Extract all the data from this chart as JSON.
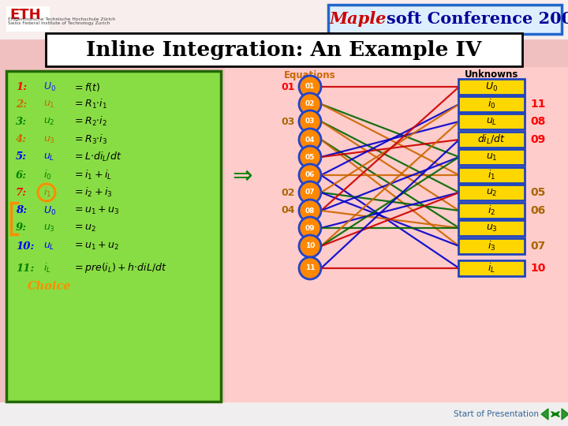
{
  "bg_color": "#F0C0C0",
  "top_strip_color": "#F5E8E8",
  "center_area_color": "#FFCCCC",
  "green_box_color": "#88DD44",
  "green_box_edge": "#226600",
  "title": "Inline Integration: An Example IV",
  "title_box_fc": "white",
  "title_box_ec": "black",
  "maple_box_fc": "#DDEEFF",
  "maple_box_ec": "#2266CC",
  "maple_red": "#CC0000",
  "maple_blue": "#000099",
  "node_fc": "#FF8800",
  "node_ec": "#2244CC",
  "unk_box_fc": "#FFD700",
  "unk_box_ec": "#2244BB",
  "eq_labels_left": [
    "01",
    "03",
    "02",
    "04"
  ],
  "eq_label_left_colors": [
    "red",
    "gold",
    "gold",
    "gold"
  ],
  "eq_node_labels": [
    "01",
    "02",
    "03",
    "04",
    "05",
    "06",
    "07",
    "08",
    "09",
    "10",
    "11"
  ],
  "unk_labels_math": [
    "U_0",
    "i_0",
    "u_L",
    "di_L/dt",
    "u_1",
    "i_1",
    "u_2",
    "i_2",
    "u_3",
    "i_3",
    "i_L"
  ],
  "unk_side_labels": [
    "",
    "11",
    "08",
    "09",
    "",
    "",
    "05",
    "06",
    "",
    "07",
    "10"
  ],
  "unk_side_colors": [
    "",
    "red",
    "red",
    "red",
    "",
    "",
    "#AA6600",
    "#AA6600",
    "",
    "#AA6600",
    "red"
  ],
  "connections": [
    [
      0,
      0,
      "#CC0000"
    ],
    [
      1,
      4,
      "#006600"
    ],
    [
      1,
      5,
      "#CC6600"
    ],
    [
      2,
      6,
      "#006600"
    ],
    [
      2,
      7,
      "#CC6600"
    ],
    [
      3,
      8,
      "#006600"
    ],
    [
      3,
      9,
      "#CC6600"
    ],
    [
      4,
      2,
      "#0000CC"
    ],
    [
      4,
      3,
      "#CC0000"
    ],
    [
      5,
      1,
      "#0000CC"
    ],
    [
      5,
      5,
      "#CC6600"
    ],
    [
      5,
      10,
      "#0000CC"
    ],
    [
      6,
      1,
      "#CC6600"
    ],
    [
      6,
      7,
      "#006600"
    ],
    [
      6,
      9,
      "#0000CC"
    ],
    [
      7,
      0,
      "#CC0000"
    ],
    [
      7,
      4,
      "#0000CC"
    ],
    [
      7,
      8,
      "#CC6600"
    ],
    [
      8,
      6,
      "#0000CC"
    ],
    [
      8,
      8,
      "#006600"
    ],
    [
      9,
      2,
      "#CC6600"
    ],
    [
      9,
      4,
      "#006600"
    ],
    [
      9,
      6,
      "#CC0000"
    ],
    [
      10,
      3,
      "#0000CC"
    ],
    [
      10,
      10,
      "#CC0000"
    ]
  ]
}
